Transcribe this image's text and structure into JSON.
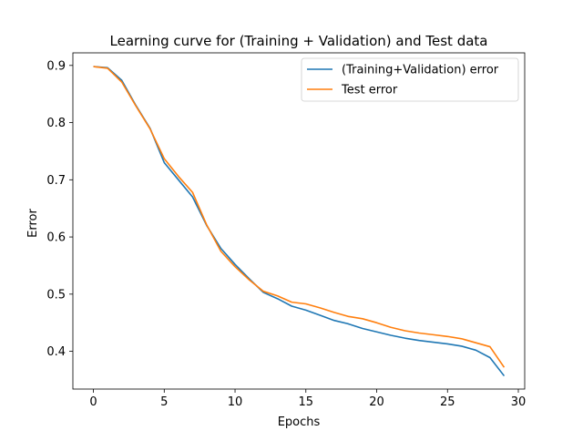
{
  "chart_data": {
    "type": "line",
    "title": "Learning curve for (Training + Validation) and Test data",
    "xlabel": "Epochs",
    "ylabel": "Error",
    "xlim": [
      -1.45,
      30.45
    ],
    "ylim": [
      0.334,
      0.922
    ],
    "xticks": [
      0,
      5,
      10,
      15,
      20,
      25,
      30
    ],
    "yticks": [
      0.4,
      0.5,
      0.6,
      0.7,
      0.8,
      0.9
    ],
    "grid": false,
    "legend_position": "top-right",
    "x": [
      0,
      1,
      2,
      3,
      4,
      5,
      6,
      7,
      8,
      9,
      10,
      11,
      12,
      13,
      14,
      15,
      16,
      17,
      18,
      19,
      20,
      21,
      22,
      23,
      24,
      25,
      26,
      27,
      28,
      29
    ],
    "series": [
      {
        "name": "(Training+Validation) error",
        "color": "#1f77b4",
        "values": [
          0.898,
          0.896,
          0.874,
          0.83,
          0.79,
          0.73,
          0.7,
          0.67,
          0.62,
          0.58,
          0.552,
          0.527,
          0.503,
          0.492,
          0.479,
          0.472,
          0.463,
          0.454,
          0.448,
          0.44,
          0.434,
          0.428,
          0.423,
          0.419,
          0.416,
          0.413,
          0.409,
          0.402,
          0.389,
          0.357
        ]
      },
      {
        "name": "Test error",
        "color": "#ff7f0e",
        "values": [
          0.898,
          0.895,
          0.871,
          0.829,
          0.789,
          0.737,
          0.706,
          0.678,
          0.621,
          0.575,
          0.548,
          0.525,
          0.505,
          0.497,
          0.486,
          0.483,
          0.476,
          0.468,
          0.461,
          0.457,
          0.45,
          0.442,
          0.436,
          0.432,
          0.429,
          0.426,
          0.422,
          0.415,
          0.408,
          0.372
        ]
      }
    ]
  }
}
